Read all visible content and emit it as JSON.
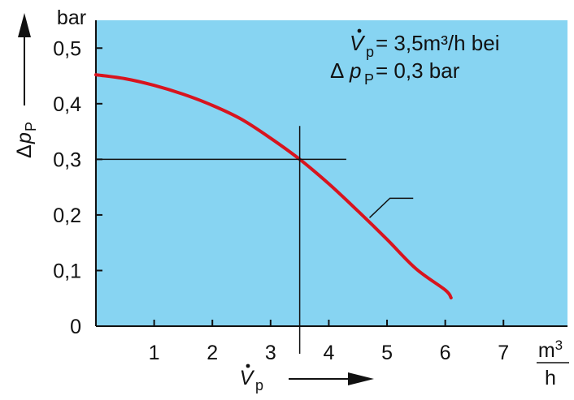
{
  "chart_data": {
    "type": "line",
    "x_ticks": [
      "1",
      "2",
      "3",
      "4",
      "5",
      "6",
      "7"
    ],
    "y_ticks": [
      "0",
      "0,1",
      "0,2",
      "0,3",
      "0,4",
      "0,5"
    ],
    "xlim": [
      0,
      8.1
    ],
    "ylim": [
      0,
      0.55
    ],
    "x_unit": {
      "numerator": "m3",
      "denominator": "h"
    },
    "y_unit": "bar",
    "xlabel": {
      "symbol": "V",
      "subscript": "p"
    },
    "ylabel": {
      "prefix": "Δ",
      "symbol": "p",
      "subscript": "P"
    },
    "annotation": {
      "line1": {
        "symbol": "V",
        "subscript": "p",
        "text": " = 3,5m³/h bei"
      },
      "line2": {
        "prefix": "Δ",
        "symbol": "p",
        "subscript": "P",
        "text": " = 0,3 bar"
      }
    },
    "series": [
      {
        "color": "#d8141e",
        "x": [
          0,
          0.5,
          1.0,
          1.5,
          2.0,
          2.5,
          3.0,
          3.5,
          4.0,
          4.5,
          5.0,
          5.5,
          6.0,
          6.1
        ],
        "y": [
          0.452,
          0.445,
          0.433,
          0.417,
          0.397,
          0.372,
          0.338,
          0.3,
          0.256,
          0.207,
          0.156,
          0.103,
          0.065,
          0.051
        ]
      }
    ],
    "operating_point": {
      "x": 3.5,
      "y": 0.3
    },
    "background_color": "#87d4f2",
    "grid": false
  }
}
